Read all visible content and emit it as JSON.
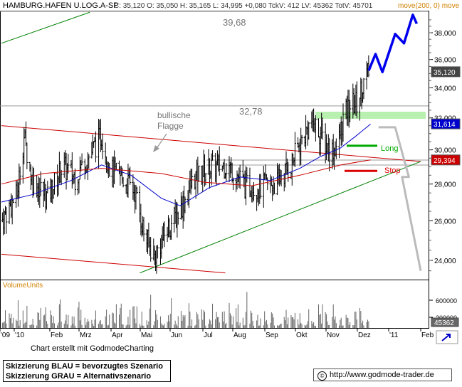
{
  "header": {
    "instrument": "HAMBURG.HAFEN U.LOG.A-SP",
    "stats": "C: 35,120 O: 35,050 H: 35,165 L: 34,995 +0,080 TckV: 412 LV: 45362 TotV: 45701",
    "indicator": "move(200, 0) move"
  },
  "chart_data": {
    "type": "candlestick",
    "x_labels": [
      "'09",
      "'10",
      "Feb",
      "Mrz",
      "Apr",
      "Mai",
      "Jun",
      "Jul",
      "Aug",
      "Sep",
      "Okt",
      "Nov",
      "Dez",
      "'11",
      "Feb"
    ],
    "y_ticks": [
      "38,000",
      "36,000",
      "34,000",
      "32,000",
      "30,000",
      "28,000",
      "26,000",
      "24,000"
    ],
    "ylim": [
      23.2,
      39.4
    ],
    "y_scale": "log",
    "last_price": "35,120",
    "ma_short_value": "31,614",
    "ma_long_value": "29,394",
    "annotations": {
      "target_high": "39,68",
      "level_mid": "32,78",
      "pattern": "bullische Flagge",
      "long": "Long",
      "stop": "Stop"
    },
    "levels": {
      "target_high": 39.68,
      "level_mid": 32.78,
      "long": 30.25,
      "stop": 28.75
    },
    "price_path": [
      [
        "2009-12-20",
        26.0
      ],
      [
        "2010-01-05",
        27.4
      ],
      [
        "2010-01-12",
        30.8
      ],
      [
        "2010-01-20",
        28.3
      ],
      [
        "2010-02-05",
        27.2
      ],
      [
        "2010-02-20",
        29.0
      ],
      [
        "2010-03-05",
        28.4
      ],
      [
        "2010-03-20",
        29.7
      ],
      [
        "2010-04-01",
        30.9
      ],
      [
        "2010-04-10",
        28.8
      ],
      [
        "2010-04-25",
        28.2
      ],
      [
        "2010-05-05",
        27.6
      ],
      [
        "2010-05-15",
        25.2
      ],
      [
        "2010-05-25",
        24.2
      ],
      [
        "2010-06-05",
        25.4
      ],
      [
        "2010-06-20",
        26.6
      ],
      [
        "2010-07-05",
        28.4
      ],
      [
        "2010-07-20",
        28.9
      ],
      [
        "2010-08-05",
        29.1
      ],
      [
        "2010-08-15",
        28.7
      ],
      [
        "2010-08-25",
        27.9
      ],
      [
        "2010-09-10",
        27.8
      ],
      [
        "2010-09-25",
        28.0
      ],
      [
        "2010-10-10",
        29.0
      ],
      [
        "2010-10-22",
        30.6
      ],
      [
        "2010-11-01",
        31.8
      ],
      [
        "2010-11-10",
        31.0
      ],
      [
        "2010-11-20",
        29.9
      ],
      [
        "2010-11-28",
        30.3
      ],
      [
        "2010-12-03",
        31.9
      ],
      [
        "2010-12-10",
        32.8
      ],
      [
        "2010-12-17",
        33.0
      ],
      [
        "2010-12-23",
        34.2
      ],
      [
        "2010-12-29",
        35.1
      ]
    ],
    "ma_short_path": [
      [
        "2009-12-20",
        27.0
      ],
      [
        "2010-01-20",
        27.4
      ],
      [
        "2010-03-01",
        28.2
      ],
      [
        "2010-04-01",
        29.1
      ],
      [
        "2010-05-01",
        28.5
      ],
      [
        "2010-06-01",
        27.2
      ],
      [
        "2010-06-20",
        26.8
      ],
      [
        "2010-07-20",
        27.8
      ],
      [
        "2010-08-20",
        28.4
      ],
      [
        "2010-09-20",
        28.2
      ],
      [
        "2010-10-20",
        28.9
      ],
      [
        "2010-11-10",
        29.6
      ],
      [
        "2010-11-30",
        30.1
      ],
      [
        "2010-12-15",
        30.8
      ],
      [
        "2010-12-31",
        31.6
      ]
    ],
    "ma_long_path": [
      [
        "2009-12-20",
        28.0
      ],
      [
        "2010-02-01",
        28.6
      ],
      [
        "2010-04-01",
        28.9
      ],
      [
        "2010-06-01",
        28.6
      ],
      [
        "2010-07-15",
        28.1
      ],
      [
        "2010-09-01",
        27.9
      ],
      [
        "2010-10-20",
        28.5
      ],
      [
        "2010-12-01",
        29.1
      ],
      [
        "2010-12-31",
        29.4
      ]
    ],
    "scenario_blue": [
      [
        "2010-12-29",
        35.2
      ],
      [
        "2011-01-05",
        36.4
      ],
      [
        "2011-01-12",
        35.1
      ],
      [
        "2011-01-25",
        37.9
      ],
      [
        "2011-02-03",
        37.2
      ],
      [
        "2011-02-12",
        39.4
      ],
      [
        "2011-02-16",
        38.7
      ]
    ],
    "scenario_grey": [
      [
        "2011-01-08",
        31.4
      ],
      [
        "2011-01-25",
        31.4
      ],
      [
        "2011-02-08",
        28.4
      ],
      [
        "2011-02-01",
        28.4
      ],
      [
        "2011-02-20",
        23.5
      ]
    ],
    "trendlines": [
      {
        "color": "#008000",
        "from": [
          "2009-12-20",
          37.2
        ],
        "to": [
          "2010-03-20",
          39.6
        ]
      },
      {
        "color": "#cc0000",
        "from": [
          "2009-12-20",
          31.5
        ],
        "to": [
          "2011-02-20",
          29.3
        ]
      },
      {
        "color": "#cc0000",
        "from": [
          "2009-12-20",
          24.3
        ],
        "to": [
          "2010-08-05",
          23.4
        ]
      },
      {
        "color": "#008000",
        "from": [
          "2010-05-10",
          23.4
        ],
        "to": [
          "2011-02-20",
          29.3
        ]
      }
    ],
    "volume": {
      "label": "VolumeUnits",
      "y_ticks": [
        "600000",
        "200000"
      ],
      "last_value": "45362"
    }
  },
  "footer": {
    "credit": "Chart erstellt mit GodmodeCharting",
    "legend_blue": "Skizzierung BLAU = bevorzugtes Szenario",
    "legend_grey": "Skizzierung GRAU = Alternativszenario",
    "copyright_symbol": "©",
    "website": "http://www.godmode-trader.de"
  },
  "colors": {
    "price": "#000000",
    "ma_short": "#0000cc",
    "ma_long": "#cc0000",
    "scenario_blue": "#0000ee",
    "scenario_grey": "#bbbbbb",
    "long": "#00aa00",
    "stop": "#dd0000",
    "zone": "#b8f0b0",
    "ma_short_badge": "#0000cc",
    "ma_long_badge": "#cc0000"
  }
}
